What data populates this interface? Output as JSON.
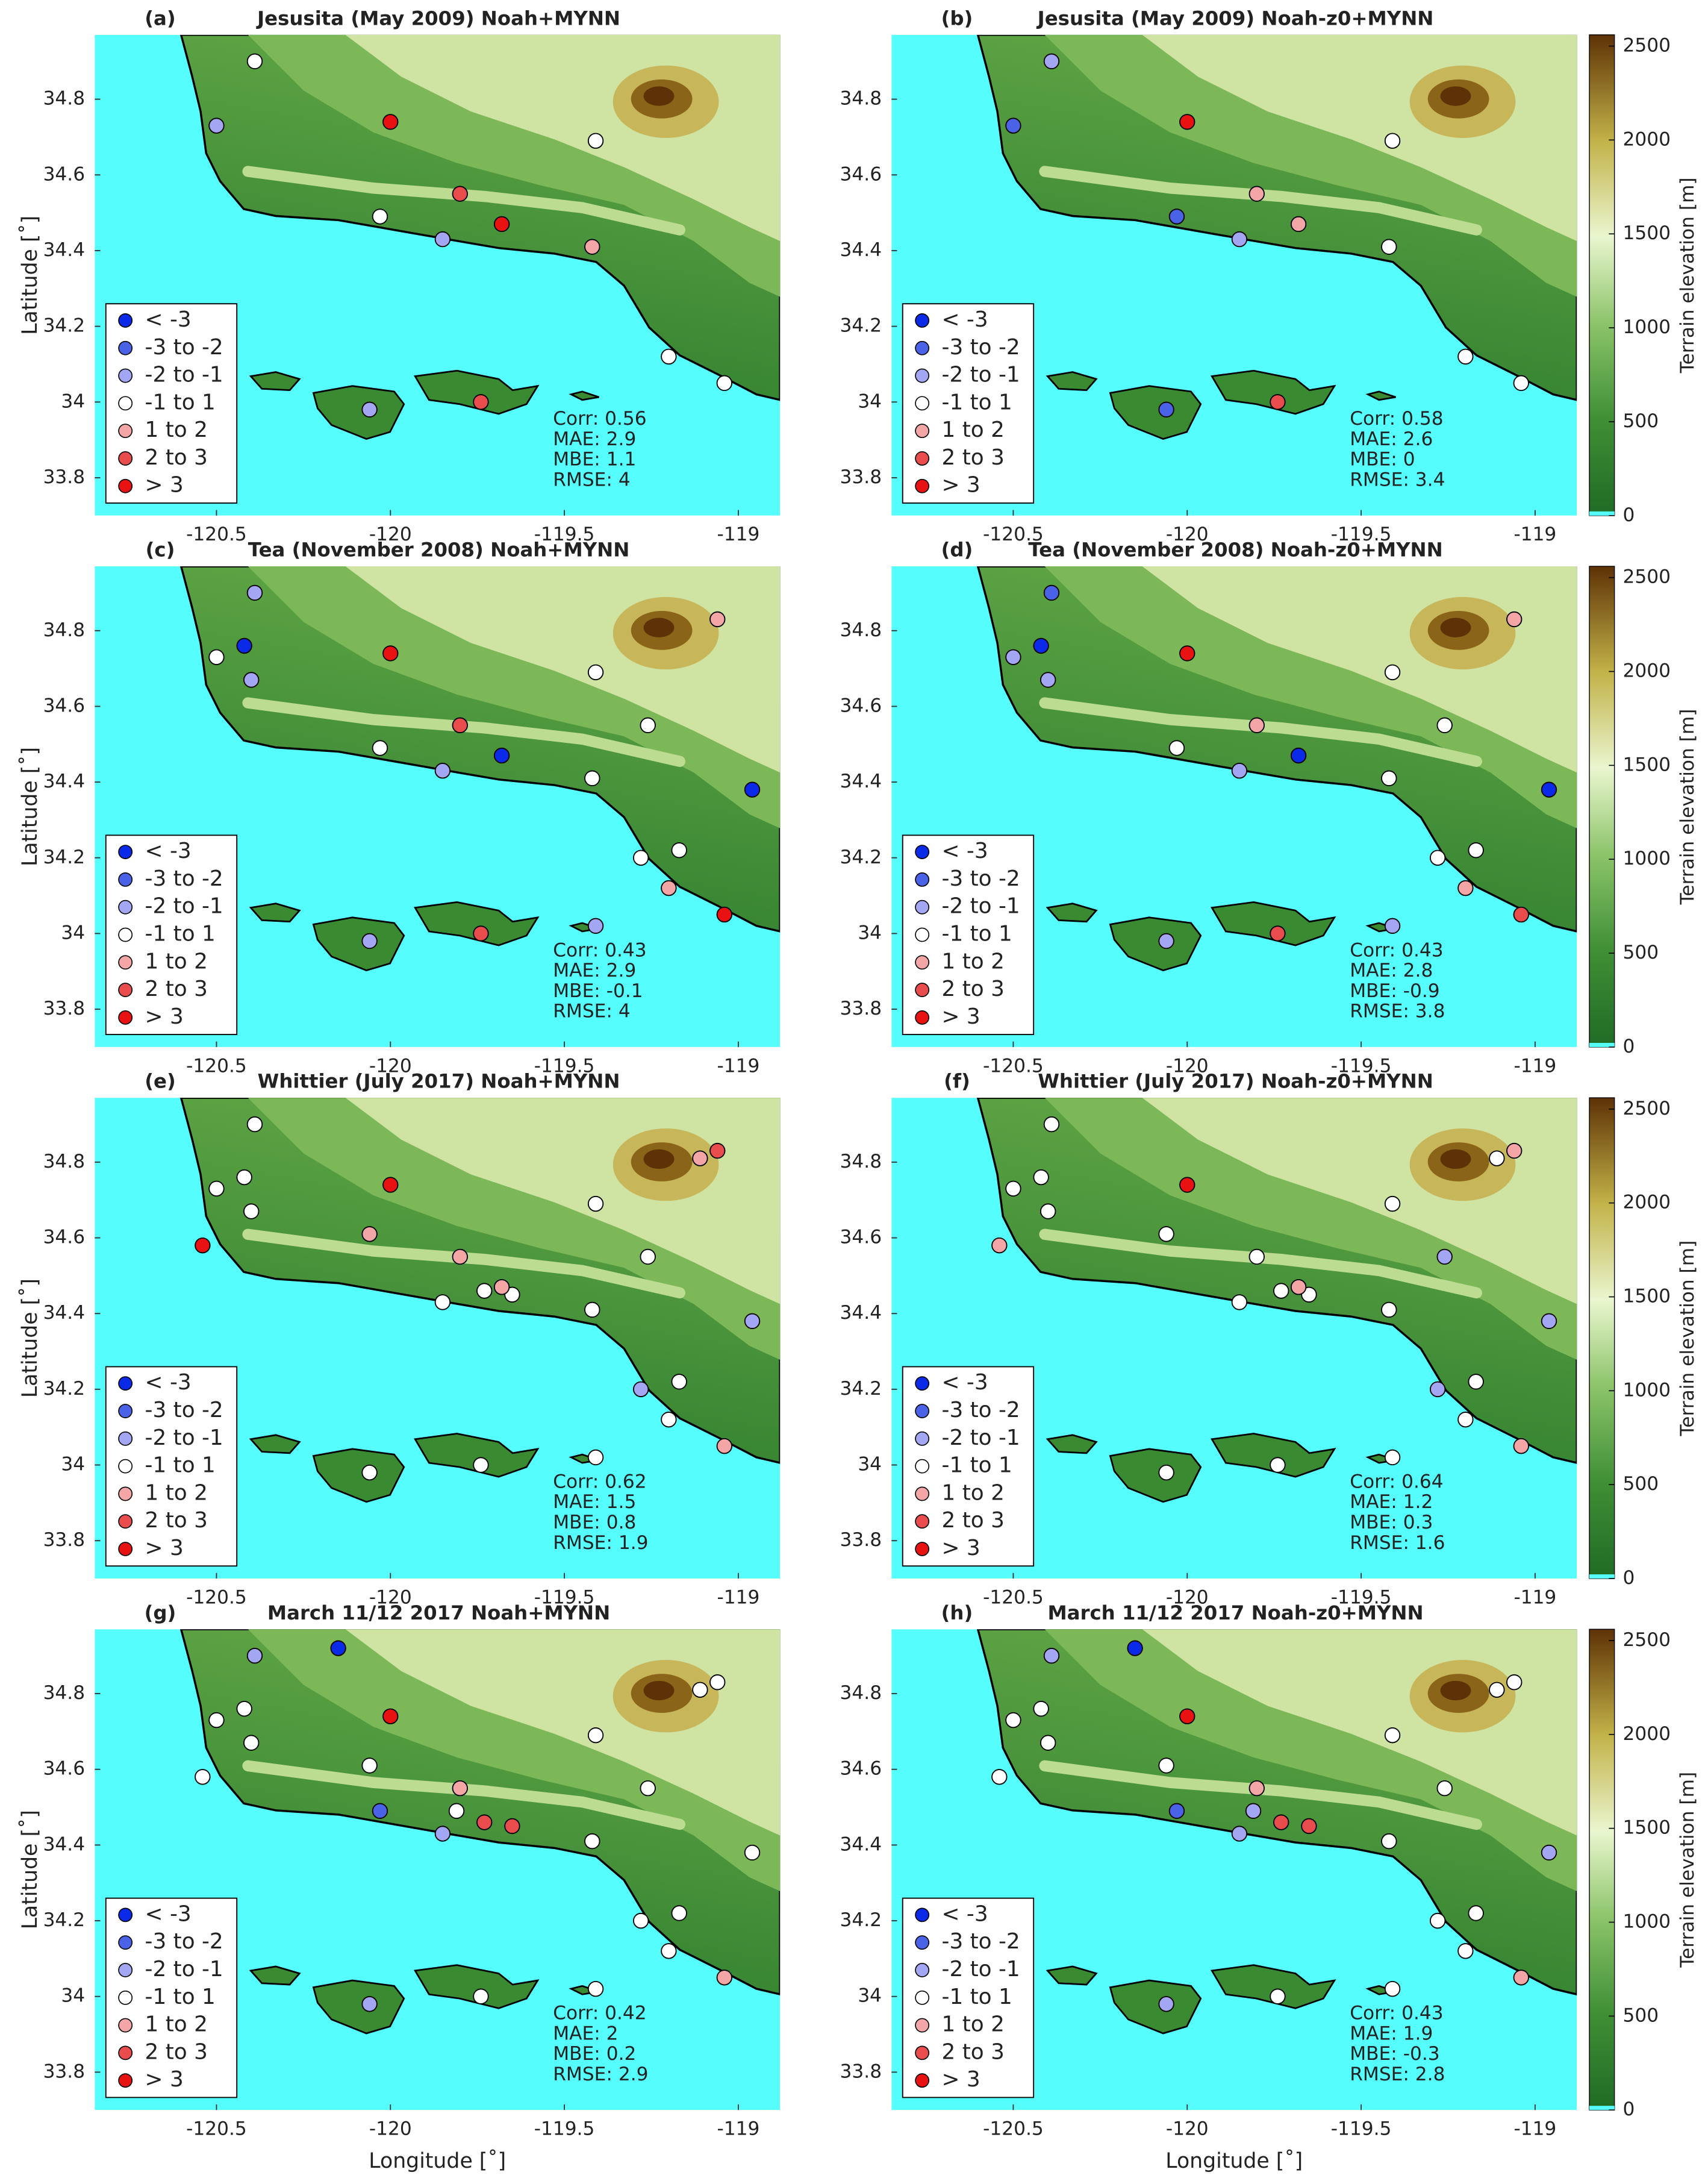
{
  "chart_data": [
    {
      "type": "scatter",
      "panel_label": "(a)",
      "title": "Jesusita (May 2009) Noah+MYNN",
      "ylabel": "Latitude [˚]",
      "xlim": [
        -120.85,
        -118.88
      ],
      "ylim": [
        33.7,
        34.97
      ],
      "xticks": [
        -120.5,
        -120,
        -119.5,
        -119
      ],
      "yticks": [
        33.8,
        34,
        34.2,
        34.4,
        34.6,
        34.8
      ],
      "series": [
        {
          "name": "< -3",
          "color": "#0a2ae8",
          "x": [],
          "y": []
        },
        {
          "name": "-3 to -2",
          "color": "#4a62e6",
          "x": [],
          "y": []
        },
        {
          "name": "-2 to -1",
          "color": "#a3a6f2",
          "x": [
            -120.5,
            -119.85,
            -120.06
          ],
          "y": [
            34.73,
            34.43,
            33.98
          ]
        },
        {
          "name": "-1 to 1",
          "color": "#ffffff",
          "x": [
            -120.39,
            -119.41,
            -120.03,
            -119.2,
            -119.04
          ],
          "y": [
            34.9,
            34.69,
            34.49,
            34.12,
            34.05
          ]
        },
        {
          "name": "1 to 2",
          "color": "#f4a6a6",
          "x": [
            -119.42
          ],
          "y": [
            34.41
          ]
        },
        {
          "name": "2 to 3",
          "color": "#e84c4c",
          "x": [
            -119.8,
            -119.74
          ],
          "y": [
            34.55,
            34.0
          ]
        },
        {
          "name": "> 3",
          "color": "#e81212",
          "x": [
            -120.0,
            -119.68
          ],
          "y": [
            34.74,
            34.47
          ]
        }
      ],
      "annotations": [
        "Corr: 0.56",
        "MAE: 2.9",
        "MBE: 1.1",
        "RMSE: 4"
      ]
    },
    {
      "type": "scatter",
      "panel_label": "(b)",
      "title": "Jesusita (May 2009) Noah-z0+MYNN",
      "xlim": [
        -120.85,
        -118.88
      ],
      "ylim": [
        33.7,
        34.97
      ],
      "xticks": [
        -120.5,
        -120,
        -119.5,
        -119
      ],
      "yticks": [
        33.8,
        34,
        34.2,
        34.4,
        34.6,
        34.8
      ],
      "series": [
        {
          "name": "< -3",
          "color": "#0a2ae8",
          "x": [],
          "y": []
        },
        {
          "name": "-3 to -2",
          "color": "#4a62e6",
          "x": [
            -120.5,
            -120.03,
            -120.06
          ],
          "y": [
            34.73,
            34.49,
            33.98
          ]
        },
        {
          "name": "-2 to -1",
          "color": "#a3a6f2",
          "x": [
            -120.39,
            -119.85
          ],
          "y": [
            34.9,
            34.43
          ]
        },
        {
          "name": "-1 to 1",
          "color": "#ffffff",
          "x": [
            -119.41,
            -119.42,
            -119.2,
            -119.04
          ],
          "y": [
            34.69,
            34.41,
            34.12,
            34.05
          ]
        },
        {
          "name": "1 to 2",
          "color": "#f4a6a6",
          "x": [
            -119.8,
            -119.68
          ],
          "y": [
            34.55,
            34.47
          ]
        },
        {
          "name": "2 to 3",
          "color": "#e84c4c",
          "x": [
            -119.74
          ],
          "y": [
            34.0
          ]
        },
        {
          "name": "> 3",
          "color": "#e81212",
          "x": [
            -120.0
          ],
          "y": [
            34.74
          ]
        }
      ],
      "annotations": [
        "Corr: 0.58",
        "MAE: 2.6",
        "MBE: 0",
        "RMSE: 3.4"
      ],
      "colorbar": {
        "label": "Terrain elevation [m]",
        "lim": [
          0,
          2560
        ],
        "ticks": [
          0,
          500,
          1000,
          1500,
          2000,
          2500
        ]
      }
    },
    {
      "type": "scatter",
      "panel_label": "(c)",
      "title": "Tea (November 2008) Noah+MYNN",
      "ylabel": "Latitude [˚]",
      "xlim": [
        -120.85,
        -118.88
      ],
      "ylim": [
        33.7,
        34.97
      ],
      "xticks": [
        -120.5,
        -120,
        -119.5,
        -119
      ],
      "yticks": [
        33.8,
        34,
        34.2,
        34.4,
        34.6,
        34.8
      ],
      "series": [
        {
          "name": "< -3",
          "color": "#0a2ae8",
          "x": [
            -120.42,
            -119.68,
            -118.96
          ],
          "y": [
            34.76,
            34.47,
            34.38
          ]
        },
        {
          "name": "-3 to -2",
          "color": "#4a62e6",
          "x": [],
          "y": []
        },
        {
          "name": "-2 to -1",
          "color": "#a3a6f2",
          "x": [
            -120.39,
            -120.4,
            -119.85,
            -120.06,
            -119.41
          ],
          "y": [
            34.9,
            34.67,
            34.43,
            33.98,
            34.02
          ]
        },
        {
          "name": "-1 to 1",
          "color": "#ffffff",
          "x": [
            -120.5,
            -119.41,
            -120.03,
            -119.42,
            -119.26,
            -119.28,
            -119.17
          ],
          "y": [
            34.73,
            34.69,
            34.49,
            34.41,
            34.55,
            34.2,
            34.22
          ]
        },
        {
          "name": "1 to 2",
          "color": "#f4a6a6",
          "x": [
            -119.2,
            -119.06
          ],
          "y": [
            34.12,
            34.83
          ]
        },
        {
          "name": "2 to 3",
          "color": "#e84c4c",
          "x": [
            -119.8,
            -119.74
          ],
          "y": [
            34.55,
            34.0
          ]
        },
        {
          "name": "> 3",
          "color": "#e81212",
          "x": [
            -120.0,
            -119.04
          ],
          "y": [
            34.74,
            34.05
          ]
        }
      ],
      "annotations": [
        "Corr: 0.43",
        "MAE: 2.9",
        "MBE: -0.1",
        "RMSE: 4"
      ]
    },
    {
      "type": "scatter",
      "panel_label": "(d)",
      "title": "Tea (November 2008) Noah-z0+MYNN",
      "xlim": [
        -120.85,
        -118.88
      ],
      "ylim": [
        33.7,
        34.97
      ],
      "xticks": [
        -120.5,
        -120,
        -119.5,
        -119
      ],
      "yticks": [
        33.8,
        34,
        34.2,
        34.4,
        34.6,
        34.8
      ],
      "series": [
        {
          "name": "< -3",
          "color": "#0a2ae8",
          "x": [
            -120.42,
            -119.68,
            -118.96
          ],
          "y": [
            34.76,
            34.47,
            34.38
          ]
        },
        {
          "name": "-3 to -2",
          "color": "#4a62e6",
          "x": [
            -120.39
          ],
          "y": [
            34.9
          ]
        },
        {
          "name": "-2 to -1",
          "color": "#a3a6f2",
          "x": [
            -120.5,
            -120.4,
            -119.85,
            -120.06,
            -119.41
          ],
          "y": [
            34.73,
            34.67,
            34.43,
            33.98,
            34.02
          ]
        },
        {
          "name": "-1 to 1",
          "color": "#ffffff",
          "x": [
            -119.41,
            -120.03,
            -119.42,
            -119.26,
            -119.28,
            -119.17
          ],
          "y": [
            34.69,
            34.49,
            34.41,
            34.55,
            34.2,
            34.22
          ]
        },
        {
          "name": "1 to 2",
          "color": "#f4a6a6",
          "x": [
            -119.8,
            -119.2,
            -119.06
          ],
          "y": [
            34.55,
            34.12,
            34.83
          ]
        },
        {
          "name": "2 to 3",
          "color": "#e84c4c",
          "x": [
            -119.04,
            -119.74
          ],
          "y": [
            34.05,
            34.0
          ]
        },
        {
          "name": "> 3",
          "color": "#e81212",
          "x": [
            -120.0
          ],
          "y": [
            34.74
          ]
        }
      ],
      "annotations": [
        "Corr: 0.43",
        "MAE: 2.8",
        "MBE: -0.9",
        "RMSE: 3.8"
      ],
      "colorbar": {
        "label": "Terrain elevation [m]",
        "lim": [
          0,
          2560
        ],
        "ticks": [
          0,
          500,
          1000,
          1500,
          2000,
          2500
        ]
      }
    },
    {
      "type": "scatter",
      "panel_label": "(e)",
      "title": "Whittier (July 2017) Noah+MYNN",
      "ylabel": "Latitude [˚]",
      "xlim": [
        -120.85,
        -118.88
      ],
      "ylim": [
        33.7,
        34.97
      ],
      "xticks": [
        -120.5,
        -120,
        -119.5,
        -119
      ],
      "yticks": [
        33.8,
        34,
        34.2,
        34.4,
        34.6,
        34.8
      ],
      "series": [
        {
          "name": "< -3",
          "color": "#0a2ae8",
          "x": [],
          "y": []
        },
        {
          "name": "-3 to -2",
          "color": "#4a62e6",
          "x": [],
          "y": []
        },
        {
          "name": "-2 to -1",
          "color": "#a3a6f2",
          "x": [
            -118.96,
            -119.28
          ],
          "y": [
            34.38,
            34.2
          ]
        },
        {
          "name": "-1 to 1",
          "color": "#ffffff",
          "x": [
            -120.39,
            -120.5,
            -120.42,
            -120.4,
            -119.41,
            -119.85,
            -119.73,
            -119.65,
            -119.42,
            -119.26,
            -119.17,
            -119.2,
            -120.06,
            -119.74,
            -119.41
          ],
          "y": [
            34.9,
            34.73,
            34.76,
            34.67,
            34.69,
            34.43,
            34.46,
            34.45,
            34.41,
            34.55,
            34.22,
            34.12,
            33.98,
            34.0,
            34.02
          ]
        },
        {
          "name": "1 to 2",
          "color": "#f4a6a6",
          "x": [
            -119.8,
            -120.06,
            -119.68,
            -119.11,
            -119.04
          ],
          "y": [
            34.55,
            34.61,
            34.47,
            34.81,
            34.05
          ]
        },
        {
          "name": "2 to 3",
          "color": "#e84c4c",
          "x": [
            -119.06
          ],
          "y": [
            34.83
          ]
        },
        {
          "name": "> 3",
          "color": "#e81212",
          "x": [
            -120.0,
            -120.54
          ],
          "y": [
            34.74,
            34.58
          ]
        }
      ],
      "annotations": [
        "Corr: 0.62",
        "MAE: 1.5",
        "MBE: 0.8",
        "RMSE: 1.9"
      ]
    },
    {
      "type": "scatter",
      "panel_label": "(f)",
      "title": "Whittier (July 2017) Noah-z0+MYNN",
      "xlim": [
        -120.85,
        -118.88
      ],
      "ylim": [
        33.7,
        34.97
      ],
      "xticks": [
        -120.5,
        -120,
        -119.5,
        -119
      ],
      "yticks": [
        33.8,
        34,
        34.2,
        34.4,
        34.6,
        34.8
      ],
      "series": [
        {
          "name": "< -3",
          "color": "#0a2ae8",
          "x": [],
          "y": []
        },
        {
          "name": "-3 to -2",
          "color": "#4a62e6",
          "x": [],
          "y": []
        },
        {
          "name": "-2 to -1",
          "color": "#a3a6f2",
          "x": [
            -119.26,
            -118.96,
            -119.28
          ],
          "y": [
            34.55,
            34.38,
            34.2
          ]
        },
        {
          "name": "-1 to 1",
          "color": "#ffffff",
          "x": [
            -120.39,
            -120.5,
            -120.42,
            -120.4,
            -119.41,
            -120.06,
            -119.8,
            -119.85,
            -119.73,
            -119.65,
            -119.42,
            -119.11,
            -119.17,
            -119.2,
            -120.06,
            -119.74,
            -119.41
          ],
          "y": [
            34.9,
            34.73,
            34.76,
            34.67,
            34.69,
            34.61,
            34.55,
            34.43,
            34.46,
            34.45,
            34.41,
            34.81,
            34.22,
            34.12,
            33.98,
            34.0,
            34.02
          ]
        },
        {
          "name": "1 to 2",
          "color": "#f4a6a6",
          "x": [
            -120.54,
            -119.68,
            -119.06,
            -119.04
          ],
          "y": [
            34.58,
            34.47,
            34.83,
            34.05
          ]
        },
        {
          "name": "2 to 3",
          "color": "#e84c4c",
          "x": [],
          "y": []
        },
        {
          "name": "> 3",
          "color": "#e81212",
          "x": [
            -120.0
          ],
          "y": [
            34.74
          ]
        }
      ],
      "annotations": [
        "Corr: 0.64",
        "MAE: 1.2",
        "MBE: 0.3",
        "RMSE: 1.6"
      ],
      "colorbar": {
        "label": "Terrain elevation [m]",
        "lim": [
          0,
          2560
        ],
        "ticks": [
          0,
          500,
          1000,
          1500,
          2000,
          2500
        ]
      }
    },
    {
      "type": "scatter",
      "panel_label": "(g)",
      "title": "March 11/12 2017 Noah+MYNN",
      "ylabel": "Latitude [˚]",
      "xlabel": "Longitude [˚]",
      "xlim": [
        -120.85,
        -118.88
      ],
      "ylim": [
        33.7,
        34.97
      ],
      "xticks": [
        -120.5,
        -120,
        -119.5,
        -119
      ],
      "yticks": [
        33.8,
        34,
        34.2,
        34.4,
        34.6,
        34.8
      ],
      "series": [
        {
          "name": "< -3",
          "color": "#0a2ae8",
          "x": [
            -120.15
          ],
          "y": [
            34.92
          ]
        },
        {
          "name": "-3 to -2",
          "color": "#4a62e6",
          "x": [
            -120.03
          ],
          "y": [
            34.49
          ]
        },
        {
          "name": "-2 to -1",
          "color": "#a3a6f2",
          "x": [
            -120.39,
            -119.85,
            -120.06
          ],
          "y": [
            34.9,
            34.43,
            33.98
          ]
        },
        {
          "name": "-1 to 1",
          "color": "#ffffff",
          "x": [
            -120.5,
            -120.42,
            -120.4,
            -120.54,
            -120.06,
            -119.41,
            -119.81,
            -119.42,
            -119.26,
            -119.11,
            -119.06,
            -118.96,
            -119.28,
            -119.17,
            -119.2,
            -119.74,
            -119.41
          ],
          "y": [
            34.73,
            34.76,
            34.67,
            34.58,
            34.61,
            34.69,
            34.49,
            34.41,
            34.55,
            34.81,
            34.83,
            34.38,
            34.2,
            34.22,
            34.12,
            34.0,
            34.02
          ]
        },
        {
          "name": "1 to 2",
          "color": "#f4a6a6",
          "x": [
            -119.8,
            -119.04
          ],
          "y": [
            34.55,
            34.05
          ]
        },
        {
          "name": "2 to 3",
          "color": "#e84c4c",
          "x": [
            -119.73,
            -119.65
          ],
          "y": [
            34.46,
            34.45
          ]
        },
        {
          "name": "> 3",
          "color": "#e81212",
          "x": [
            -120.0
          ],
          "y": [
            34.74
          ]
        }
      ],
      "annotations": [
        "Corr: 0.42",
        "MAE: 2",
        "MBE: 0.2",
        "RMSE: 2.9"
      ]
    },
    {
      "type": "scatter",
      "panel_label": "(h)",
      "title": "March 11/12 2017 Noah-z0+MYNN",
      "xlabel": "Longitude [˚]",
      "xlim": [
        -120.85,
        -118.88
      ],
      "ylim": [
        33.7,
        34.97
      ],
      "xticks": [
        -120.5,
        -120,
        -119.5,
        -119
      ],
      "yticks": [
        33.8,
        34,
        34.2,
        34.4,
        34.6,
        34.8
      ],
      "series": [
        {
          "name": "< -3",
          "color": "#0a2ae8",
          "x": [
            -120.15
          ],
          "y": [
            34.92
          ]
        },
        {
          "name": "-3 to -2",
          "color": "#4a62e6",
          "x": [
            -120.03
          ],
          "y": [
            34.49
          ]
        },
        {
          "name": "-2 to -1",
          "color": "#a3a6f2",
          "x": [
            -120.39,
            -119.81,
            -119.85,
            -118.96,
            -120.06
          ],
          "y": [
            34.9,
            34.49,
            34.43,
            34.38,
            33.98
          ]
        },
        {
          "name": "-1 to 1",
          "color": "#ffffff",
          "x": [
            -120.5,
            -120.42,
            -120.4,
            -120.54,
            -120.06,
            -119.41,
            -119.42,
            -119.26,
            -119.11,
            -119.06,
            -119.28,
            -119.17,
            -119.2,
            -119.74,
            -119.41
          ],
          "y": [
            34.73,
            34.76,
            34.67,
            34.58,
            34.61,
            34.69,
            34.41,
            34.55,
            34.81,
            34.83,
            34.2,
            34.22,
            34.12,
            34.0,
            34.02
          ]
        },
        {
          "name": "1 to 2",
          "color": "#f4a6a6",
          "x": [
            -119.8,
            -119.04
          ],
          "y": [
            34.55,
            34.05
          ]
        },
        {
          "name": "2 to 3",
          "color": "#e84c4c",
          "x": [
            -119.73,
            -119.65
          ],
          "y": [
            34.46,
            34.45
          ]
        },
        {
          "name": "> 3",
          "color": "#e81212",
          "x": [
            -120.0
          ],
          "y": [
            34.74
          ]
        }
      ],
      "annotations": [
        "Corr: 0.43",
        "MAE: 1.9",
        "MBE: -0.3",
        "RMSE: 2.8"
      ],
      "colorbar": {
        "label": "Terrain elevation [m]",
        "lim": [
          0,
          2560
        ],
        "ticks": [
          0,
          500,
          1000,
          1500,
          2000,
          2500
        ]
      }
    }
  ]
}
